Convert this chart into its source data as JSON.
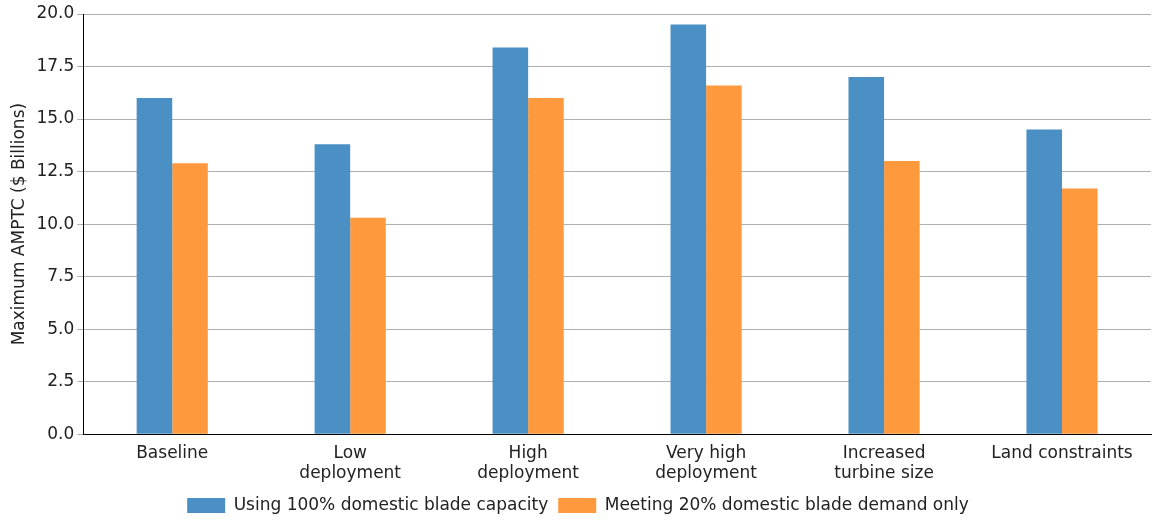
{
  "chart_data": {
    "type": "bar",
    "ylabel": "Maximum AMPTC ($ Billions)",
    "categories": [
      "Baseline",
      "Low\ndeployment",
      "High\ndeployment",
      "Very high\ndeployment",
      "Increased\nturbine size",
      "Land constraints"
    ],
    "series": [
      {
        "name": "Using 100% domestic blade capacity",
        "color": "#4a90c4",
        "values": [
          16.0,
          13.8,
          18.4,
          19.5,
          17.0,
          14.5
        ]
      },
      {
        "name": "Meeting 20% domestic blade demand only",
        "color": "#ff993e",
        "values": [
          12.9,
          10.3,
          16.0,
          16.6,
          13.0,
          11.7
        ]
      }
    ],
    "ylim": [
      0,
      20
    ],
    "yticks": [
      {
        "value": 0,
        "label": "0.0"
      },
      {
        "value": 2.5,
        "label": "2.5"
      },
      {
        "value": 5,
        "label": "5.0"
      },
      {
        "value": 7.5,
        "label": "7.5"
      },
      {
        "value": 10,
        "label": "10.0"
      },
      {
        "value": 12.5,
        "label": "12.5"
      },
      {
        "value": 15,
        "label": "15.0"
      },
      {
        "value": 17.5,
        "label": "17.5"
      },
      {
        "value": 20,
        "label": "20.0"
      }
    ],
    "grid": "y",
    "legend": "bottom"
  }
}
